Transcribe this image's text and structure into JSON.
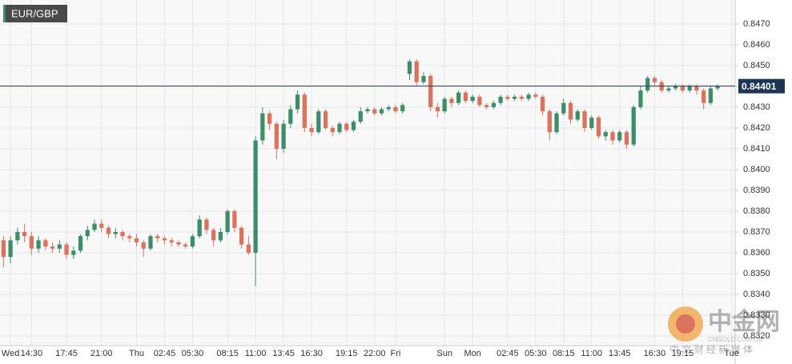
{
  "chart_data": {
    "type": "candlestick",
    "title": "EUR/GBP",
    "categories": [
      null,
      "Wed",
      null,
      null,
      "14:30",
      null,
      null,
      null,
      null,
      "17:45",
      null,
      null,
      null,
      null,
      "21:00",
      null,
      null,
      null,
      null,
      "Thu",
      null,
      null,
      null,
      "02:45",
      null,
      null,
      null,
      "05:30",
      null,
      null,
      null,
      null,
      "08:15",
      null,
      null,
      null,
      "11:00",
      null,
      null,
      null,
      "13:45",
      null,
      null,
      null,
      "16:30",
      null,
      null,
      null,
      null,
      "19:15",
      null,
      null,
      null,
      "22:00",
      null,
      null,
      "Fri",
      null,
      null,
      null,
      null,
      null,
      null,
      "Sun",
      null,
      null,
      null,
      "Mon",
      null,
      null,
      null,
      null,
      "02:45",
      null,
      null,
      null,
      "05:30",
      null,
      null,
      null,
      "08:15",
      null,
      null,
      null,
      "11:00",
      null,
      null,
      null,
      "13:45",
      null,
      null,
      null,
      null,
      "16:30",
      null,
      null,
      null,
      "19:15",
      null,
      null,
      null,
      null,
      null,
      null,
      "Tue"
    ],
    "open": [
      0.8366,
      0.8358,
      0.8366,
      0.837,
      0.8368,
      0.8362,
      0.8366,
      0.8363,
      0.8362,
      0.8364,
      0.8359,
      0.8361,
      0.8368,
      0.8371,
      0.8374,
      0.8372,
      0.8369,
      0.837,
      0.8368,
      0.8367,
      0.8365,
      0.8362,
      0.8368,
      0.8367,
      0.8366,
      0.8365,
      0.8364,
      0.8363,
      0.8368,
      0.8376,
      0.8371,
      0.8366,
      0.837,
      0.838,
      0.8372,
      0.8364,
      0.836,
      0.8414,
      0.8427,
      0.8422,
      0.841,
      0.8422,
      0.8429,
      0.8436,
      0.842,
      0.8418,
      0.8428,
      0.842,
      0.8418,
      0.8422,
      0.8419,
      0.8423,
      0.8428,
      0.8429,
      0.8427,
      0.8429,
      0.843,
      0.8428,
      0.8446,
      0.8452,
      0.8442,
      0.8445,
      0.843,
      0.8428,
      0.8434,
      0.8432,
      0.8437,
      0.8433,
      0.8435,
      0.8431,
      0.843,
      0.8432,
      0.8435,
      0.8434,
      0.8435,
      0.8434,
      0.8436,
      0.8435,
      0.8428,
      0.8418,
      0.8427,
      0.8432,
      0.8424,
      0.8428,
      0.842,
      0.8425,
      0.8416,
      0.8418,
      0.8414,
      0.8418,
      0.8412,
      0.843,
      0.8438,
      0.8444,
      0.8442,
      0.8438,
      0.8439,
      0.844,
      0.8438,
      0.844,
      0.8438,
      0.8432,
      0.8439,
      null,
      null
    ],
    "high": [
      0.8368,
      0.8368,
      0.8372,
      0.8374,
      0.837,
      0.8368,
      0.8367,
      0.8365,
      0.8366,
      0.8365,
      0.8363,
      0.8369,
      0.8373,
      0.8376,
      0.8376,
      0.8373,
      0.8372,
      0.8371,
      0.8369,
      0.8369,
      0.8366,
      0.8369,
      0.8369,
      0.8368,
      0.8367,
      0.8366,
      0.8365,
      0.8369,
      0.8378,
      0.8377,
      0.8372,
      0.8372,
      0.8381,
      0.8381,
      0.8373,
      0.8368,
      0.8416,
      0.843,
      0.8428,
      0.8423,
      0.8424,
      0.8431,
      0.8438,
      0.8437,
      0.8422,
      0.8429,
      0.8429,
      0.8421,
      0.8423,
      0.8423,
      0.8424,
      0.843,
      0.843,
      0.843,
      0.843,
      0.8431,
      0.8431,
      0.8432,
      0.8453,
      0.8453,
      0.8447,
      0.8446,
      0.8432,
      0.8435,
      0.8435,
      0.8438,
      0.8438,
      0.8436,
      0.8436,
      0.8432,
      0.8433,
      0.8436,
      0.8436,
      0.8436,
      0.8436,
      0.8437,
      0.8437,
      0.8436,
      0.8429,
      0.8428,
      0.8434,
      0.8433,
      0.8429,
      0.8429,
      0.8426,
      0.8426,
      0.8419,
      0.8419,
      0.8419,
      0.8419,
      0.8431,
      0.844,
      0.8445,
      0.8445,
      0.8443,
      0.844,
      0.8441,
      0.8441,
      0.8441,
      0.8441,
      0.8439,
      0.844,
      0.8441,
      null,
      null
    ],
    "low": [
      0.8353,
      0.8355,
      0.8364,
      0.8365,
      0.8359,
      0.836,
      0.8361,
      0.836,
      0.836,
      0.8357,
      0.8357,
      0.836,
      0.8366,
      0.837,
      0.837,
      0.8367,
      0.8367,
      0.8366,
      0.8365,
      0.8363,
      0.8358,
      0.8361,
      0.8365,
      0.8364,
      0.8363,
      0.8363,
      0.8362,
      0.8362,
      0.8367,
      0.8369,
      0.8363,
      0.8365,
      0.8369,
      0.837,
      0.8362,
      0.8359,
      0.8344,
      0.8412,
      0.8419,
      0.8405,
      0.8408,
      0.842,
      0.8427,
      0.8418,
      0.8416,
      0.8417,
      0.8419,
      0.8416,
      0.8417,
      0.8418,
      0.8418,
      0.8422,
      0.8427,
      0.8426,
      0.8426,
      0.8428,
      0.8427,
      0.8427,
      0.8443,
      0.844,
      0.8441,
      0.8428,
      0.8425,
      0.8427,
      0.843,
      0.8431,
      0.8432,
      0.8432,
      0.843,
      0.8429,
      0.8429,
      0.8431,
      0.8433,
      0.8433,
      0.8433,
      0.8433,
      0.8434,
      0.8426,
      0.8414,
      0.8417,
      0.8426,
      0.8422,
      0.8423,
      0.8418,
      0.8419,
      0.8415,
      0.8414,
      0.8412,
      0.8413,
      0.841,
      0.8411,
      0.8429,
      0.8437,
      0.844,
      0.8437,
      0.8437,
      0.8438,
      0.8437,
      0.8437,
      0.8436,
      0.8429,
      0.8431,
      0.8438,
      null,
      null
    ],
    "close": [
      0.8358,
      0.8366,
      0.837,
      0.8368,
      0.8362,
      0.8366,
      0.8363,
      0.8362,
      0.8364,
      0.8359,
      0.8361,
      0.8368,
      0.8371,
      0.8374,
      0.8372,
      0.8369,
      0.837,
      0.8368,
      0.8367,
      0.8365,
      0.8362,
      0.8368,
      0.8367,
      0.8366,
      0.8365,
      0.8364,
      0.8363,
      0.8368,
      0.8376,
      0.8371,
      0.8366,
      0.837,
      0.838,
      0.8372,
      0.8364,
      0.836,
      0.8414,
      0.8427,
      0.8422,
      0.841,
      0.8422,
      0.8429,
      0.8436,
      0.842,
      0.8418,
      0.8428,
      0.842,
      0.8418,
      0.8422,
      0.8419,
      0.8423,
      0.8428,
      0.8429,
      0.8427,
      0.8429,
      0.843,
      0.8428,
      0.8431,
      0.8452,
      0.8442,
      0.8445,
      0.843,
      0.8428,
      0.8434,
      0.8432,
      0.8437,
      0.8433,
      0.8435,
      0.8431,
      0.843,
      0.8432,
      0.8435,
      0.8434,
      0.8435,
      0.8434,
      0.8436,
      0.8435,
      0.8428,
      0.8418,
      0.8427,
      0.8432,
      0.8424,
      0.8428,
      0.842,
      0.8425,
      0.8416,
      0.8418,
      0.8414,
      0.8418,
      0.8412,
      0.843,
      0.8438,
      0.8444,
      0.8442,
      0.8438,
      0.8439,
      0.844,
      0.8438,
      0.844,
      0.8438,
      0.8432,
      0.8439,
      0.844,
      null,
      null
    ],
    "up_color": "#3a8f6a",
    "down_color": "#e0705a",
    "ylim": [
      0.83154,
      0.84815
    ],
    "yticks": [
      {
        "value": 0.832,
        "label": "0.8320"
      },
      {
        "value": 0.833,
        "label": "0.8330"
      },
      {
        "value": 0.834,
        "label": "0.8340"
      },
      {
        "value": 0.835,
        "label": "0.8350"
      },
      {
        "value": 0.836,
        "label": "0.8360"
      },
      {
        "value": 0.837,
        "label": "0.8370"
      },
      {
        "value": 0.838,
        "label": "0.8380"
      },
      {
        "value": 0.839,
        "label": "0.8390"
      },
      {
        "value": 0.84,
        "label": "0.8400"
      },
      {
        "value": 0.841,
        "label": "0.8410"
      },
      {
        "value": 0.842,
        "label": "0.8420"
      },
      {
        "value": 0.843,
        "label": "0.8430"
      },
      {
        "value": 0.844,
        "label": "0.8440"
      },
      {
        "value": 0.845,
        "label": "0.8450"
      },
      {
        "value": 0.846,
        "label": "0.8460"
      },
      {
        "value": 0.847,
        "label": "0.8470"
      }
    ],
    "grid": true,
    "last_price": {
      "value": 0.84401,
      "label": "0.84401"
    },
    "watermark": {
      "logo": "中金网",
      "site": "CNGOLD.COM.CN",
      "slogan": "中 文 财 经 新 媒 体"
    }
  }
}
